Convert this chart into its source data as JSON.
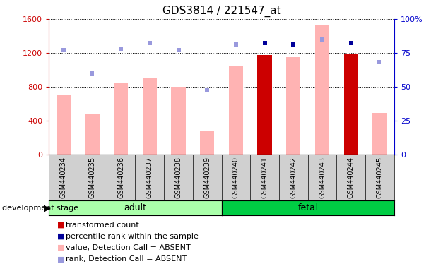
{
  "title": "GDS3814 / 221547_at",
  "samples": [
    "GSM440234",
    "GSM440235",
    "GSM440236",
    "GSM440237",
    "GSM440238",
    "GSM440239",
    "GSM440240",
    "GSM440241",
    "GSM440242",
    "GSM440243",
    "GSM440244",
    "GSM440245"
  ],
  "bar_values": [
    700,
    470,
    850,
    900,
    800,
    270,
    1050,
    1175,
    1150,
    1530,
    1190,
    490
  ],
  "bar_colors": [
    "#ffb3b3",
    "#ffb3b3",
    "#ffb3b3",
    "#ffb3b3",
    "#ffb3b3",
    "#ffb3b3",
    "#ffb3b3",
    "#cc0000",
    "#ffb3b3",
    "#ffb3b3",
    "#cc0000",
    "#ffb3b3"
  ],
  "rank_values": [
    77,
    60,
    78,
    82,
    77,
    48,
    81,
    82,
    81,
    85,
    82,
    68
  ],
  "rank_colors": [
    "#9999dd",
    "#9999dd",
    "#9999dd",
    "#9999dd",
    "#9999dd",
    "#9999dd",
    "#9999dd",
    "#000099",
    "#000099",
    "#9999dd",
    "#000099",
    "#9999dd"
  ],
  "groups": [
    {
      "label": "adult",
      "start": 0,
      "end": 5,
      "color": "#aaffaa"
    },
    {
      "label": "fetal",
      "start": 6,
      "end": 11,
      "color": "#00cc44"
    }
  ],
  "ylim_left": [
    0,
    1600
  ],
  "ylim_right": [
    0,
    100
  ],
  "yticks_left": [
    0,
    400,
    800,
    1200,
    1600
  ],
  "yticks_right": [
    0,
    25,
    50,
    75,
    100
  ],
  "left_tick_color": "#cc0000",
  "right_tick_color": "#0000cc",
  "group_label": "development stage",
  "legend_items": [
    {
      "color": "#cc0000",
      "label": "transformed count"
    },
    {
      "color": "#000099",
      "label": "percentile rank within the sample"
    },
    {
      "color": "#ffb3b3",
      "label": "value, Detection Call = ABSENT"
    },
    {
      "color": "#9999dd",
      "label": "rank, Detection Call = ABSENT"
    }
  ],
  "xtick_bg": "#d0d0d0",
  "plot_bg": "#ffffff"
}
